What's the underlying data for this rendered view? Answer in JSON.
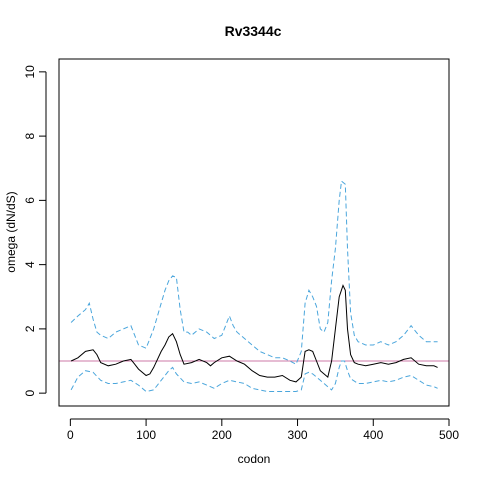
{
  "chart_data": {
    "type": "line",
    "title": "Rv3344c",
    "xlabel": "codon",
    "ylabel": "omega (dN/dS)",
    "xlim": [
      -15,
      500
    ],
    "ylim": [
      -0.4,
      10.4
    ],
    "x_ticks": [
      0,
      100,
      200,
      300,
      400,
      500
    ],
    "x_tick_labels": [
      "0",
      "100",
      "200",
      "300",
      "400",
      "500"
    ],
    "y_ticks": [
      0,
      2,
      4,
      6,
      8,
      10
    ],
    "y_tick_labels": [
      "0",
      "2",
      "4",
      "6",
      "8",
      "10"
    ],
    "grid": false,
    "reference_line": {
      "y": 1.0,
      "color": "#cc79a7"
    },
    "series": [
      {
        "style": "solid",
        "color": "#000000",
        "x": [
          1,
          10,
          20,
          30,
          35,
          40,
          50,
          60,
          70,
          80,
          85,
          90,
          100,
          105,
          110,
          120,
          125,
          130,
          135,
          140,
          145,
          150,
          160,
          170,
          180,
          185,
          190,
          200,
          210,
          220,
          230,
          240,
          250,
          260,
          270,
          280,
          290,
          298,
          305,
          310,
          315,
          320,
          325,
          330,
          335,
          340,
          345,
          350,
          355,
          360,
          363,
          366,
          370,
          375,
          380,
          390,
          400,
          410,
          420,
          430,
          440,
          450,
          460,
          470,
          480,
          485
        ],
        "values": [
          1.0,
          1.1,
          1.3,
          1.35,
          1.2,
          0.95,
          0.85,
          0.9,
          1.0,
          1.05,
          0.9,
          0.75,
          0.55,
          0.6,
          0.8,
          1.3,
          1.5,
          1.75,
          1.85,
          1.6,
          1.2,
          0.9,
          0.95,
          1.05,
          0.95,
          0.85,
          0.95,
          1.1,
          1.15,
          1.0,
          0.9,
          0.7,
          0.55,
          0.5,
          0.5,
          0.55,
          0.4,
          0.35,
          0.5,
          1.3,
          1.35,
          1.3,
          1.0,
          0.7,
          0.6,
          0.5,
          1.0,
          2.0,
          3.0,
          3.35,
          3.2,
          2.0,
          1.2,
          0.95,
          0.9,
          0.85,
          0.9,
          0.95,
          0.9,
          0.95,
          1.05,
          1.1,
          0.9,
          0.85,
          0.85,
          0.8
        ]
      },
      {
        "style": "dashed",
        "color": "#4ba6dc",
        "x": [
          1,
          10,
          20,
          25,
          30,
          35,
          40,
          50,
          60,
          70,
          80,
          85,
          90,
          100,
          110,
          120,
          125,
          130,
          135,
          140,
          145,
          150,
          155,
          160,
          170,
          180,
          190,
          200,
          205,
          210,
          215,
          220,
          230,
          240,
          250,
          260,
          270,
          280,
          290,
          298,
          305,
          310,
          315,
          320,
          325,
          330,
          335,
          340,
          345,
          350,
          355,
          358,
          363,
          366,
          370,
          375,
          380,
          390,
          400,
          410,
          420,
          430,
          440,
          450,
          460,
          470,
          480,
          485
        ],
        "values": [
          2.2,
          2.4,
          2.6,
          2.8,
          2.3,
          1.9,
          1.8,
          1.7,
          1.9,
          2.0,
          2.1,
          1.8,
          1.5,
          1.4,
          2.0,
          2.8,
          3.2,
          3.5,
          3.65,
          3.6,
          2.6,
          1.9,
          1.9,
          1.8,
          2.0,
          1.9,
          1.7,
          1.8,
          2.1,
          2.4,
          2.1,
          1.9,
          1.7,
          1.5,
          1.3,
          1.2,
          1.1,
          1.1,
          1.0,
          0.9,
          1.3,
          2.8,
          3.2,
          3.0,
          2.7,
          2.0,
          1.9,
          2.2,
          3.5,
          4.5,
          6.0,
          6.6,
          6.5,
          4.5,
          2.5,
          1.8,
          1.6,
          1.5,
          1.5,
          1.6,
          1.5,
          1.6,
          1.8,
          2.1,
          1.8,
          1.6,
          1.6,
          1.6
        ]
      },
      {
        "style": "dashed",
        "color": "#4ba6dc",
        "x": [
          1,
          10,
          20,
          30,
          40,
          50,
          60,
          70,
          80,
          90,
          100,
          110,
          120,
          130,
          135,
          140,
          150,
          160,
          170,
          180,
          190,
          200,
          210,
          220,
          230,
          240,
          250,
          260,
          270,
          280,
          290,
          298,
          305,
          310,
          315,
          320,
          330,
          340,
          345,
          350,
          355,
          358,
          362,
          366,
          370,
          380,
          390,
          400,
          410,
          420,
          430,
          440,
          450,
          460,
          470,
          480,
          485
        ],
        "values": [
          0.1,
          0.5,
          0.7,
          0.65,
          0.4,
          0.3,
          0.3,
          0.35,
          0.4,
          0.25,
          0.05,
          0.1,
          0.4,
          0.7,
          0.8,
          0.6,
          0.35,
          0.3,
          0.35,
          0.25,
          0.15,
          0.3,
          0.4,
          0.35,
          0.3,
          0.15,
          0.1,
          0.05,
          0.05,
          0.05,
          0.05,
          0.05,
          0.1,
          0.6,
          0.65,
          0.6,
          0.4,
          0.2,
          0.1,
          0.3,
          0.8,
          1.0,
          1.0,
          0.7,
          0.45,
          0.3,
          0.3,
          0.35,
          0.4,
          0.35,
          0.4,
          0.5,
          0.55,
          0.4,
          0.25,
          0.2,
          0.15
        ]
      }
    ]
  }
}
